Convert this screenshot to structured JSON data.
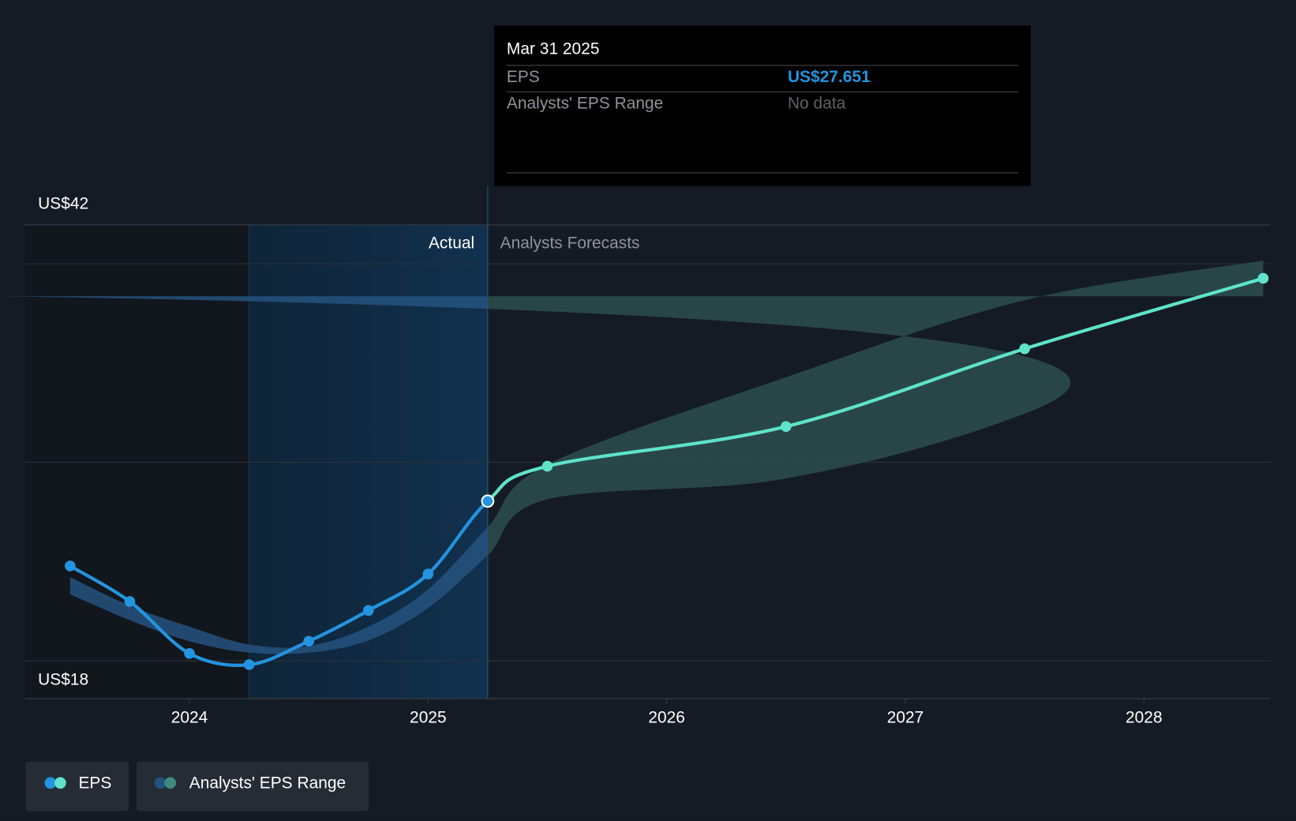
{
  "chart_data": {
    "type": "line",
    "x": [
      2023.5,
      2023.75,
      2024.0,
      2024.25,
      2024.5,
      2024.75,
      2025.0,
      2025.25,
      2025.5,
      2026.5,
      2027.5,
      2028.5
    ],
    "xlim": [
      2023.31,
      2028.53
    ],
    "xticks": [
      2024,
      2025,
      2026,
      2027,
      2028
    ],
    "ylim": [
      15.71,
      44.35
    ],
    "yticks": [
      {
        "value": 18,
        "label": "US$18"
      },
      {
        "value": 42,
        "label": "US$42"
      }
    ],
    "grid_values": [
      18,
      30,
      42
    ],
    "grid": true,
    "forecast_start": 2025.25,
    "highlight_start": 2024.25,
    "region_labels": {
      "actual": "Actual",
      "forecast": "Analysts Forecasts"
    },
    "series": [
      {
        "name": "EPS",
        "color": "#2394df",
        "forecast_color": "#5fe3cb",
        "values": [
          23.73,
          21.58,
          18.44,
          17.76,
          19.18,
          21.04,
          23.24,
          27.651,
          29.76,
          32.16,
          36.86,
          41.12
        ]
      },
      {
        "name": "Analysts' EPS Range",
        "color": "#24527e",
        "forecast_color": "#2c4d4f",
        "high": [
          23.05,
          21.33,
          20.06,
          18.98,
          18.89,
          20.06,
          22.31,
          26.08,
          29.86,
          35.14,
          39.8,
          42.2
        ],
        "low": [
          22.02,
          20.45,
          19.18,
          18.49,
          18.49,
          19.23,
          21.19,
          24.37,
          27.76,
          29.02,
          32.94,
          40.04
        ]
      }
    ],
    "tooltip": {
      "date": "Mar 31 2025",
      "rows": [
        [
          "EPS",
          "US$27.651"
        ],
        [
          "Analysts' EPS Range",
          "No data"
        ]
      ]
    }
  }
}
